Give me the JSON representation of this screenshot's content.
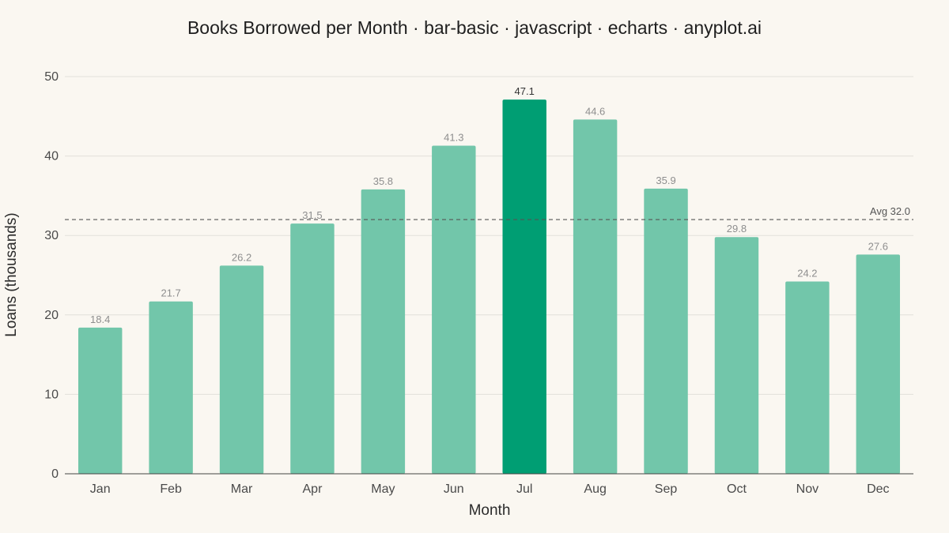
{
  "chart_data": {
    "type": "bar",
    "title": "Books Borrowed per Month · bar-basic · javascript · echarts · anyplot.ai",
    "xlabel": "Month",
    "ylabel": "Loans (thousands)",
    "categories": [
      "Jan",
      "Feb",
      "Mar",
      "Apr",
      "May",
      "Jun",
      "Jul",
      "Aug",
      "Sep",
      "Oct",
      "Nov",
      "Dec"
    ],
    "values": [
      18.4,
      21.7,
      26.2,
      31.5,
      35.8,
      41.3,
      47.1,
      44.6,
      35.9,
      29.8,
      24.2,
      27.6
    ],
    "value_labels": [
      "18.4",
      "21.7",
      "26.2",
      "31.5",
      "35.8",
      "41.3",
      "47.1",
      "44.6",
      "35.9",
      "29.8",
      "24.2",
      "27.6"
    ],
    "ylim": [
      0,
      50
    ],
    "yticks": [
      0,
      10,
      20,
      30,
      40,
      50
    ],
    "ytick_labels": [
      "0",
      "10",
      "20",
      "30",
      "40",
      "50"
    ],
    "grid": true,
    "highlight_index": 6,
    "reference_line": {
      "value": 32.0,
      "label": "Avg 32.0",
      "style": "dashed"
    },
    "colors": {
      "bar": "#72c6aa",
      "bar_highlight": "#009e73",
      "grid": "#e2e0da",
      "axis": "#444444",
      "reference_line": "#555555",
      "background": "#faf7f1"
    }
  }
}
